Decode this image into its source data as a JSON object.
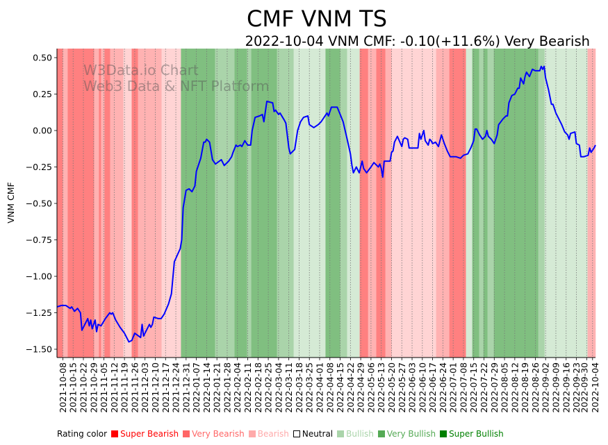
{
  "chart_data": {
    "type": "line",
    "title": "CMF VNM TS",
    "subtitle": "2022-10-04 VNM CMF: -0.10(+11.6%) Very Bearish",
    "ylabel": "VNM CMF",
    "xlabel": "",
    "ylim": [
      -1.557,
      0.562
    ],
    "xlim_days": [
      -4,
      363
    ],
    "x_origin": "2021-10-08",
    "yticks": [
      0.5,
      0.25,
      0,
      -0.25,
      -0.5,
      -0.75,
      -1.0,
      -1.25,
      -1.5
    ],
    "ytick_labels": [
      "0.50",
      "0.25",
      "0.00",
      "−0.25",
      "−0.50",
      "−0.75",
      "−1.00",
      "−1.25",
      "−1.50"
    ],
    "xtick_labels": [
      "2021-10-08",
      "2021-10-15",
      "2021-10-22",
      "2021-10-29",
      "2021-11-05",
      "2021-11-12",
      "2021-11-19",
      "2021-11-26",
      "2021-12-03",
      "2021-12-10",
      "2021-12-17",
      "2021-12-24",
      "2021-12-31",
      "2022-01-07",
      "2022-01-14",
      "2022-01-21",
      "2022-01-28",
      "2022-02-04",
      "2022-02-11",
      "2022-02-18",
      "2022-02-25",
      "2022-03-04",
      "2022-03-11",
      "2022-03-18",
      "2022-03-25",
      "2022-04-01",
      "2022-04-08",
      "2022-04-15",
      "2022-04-22",
      "2022-04-29",
      "2022-05-06",
      "2022-05-13",
      "2022-05-20",
      "2022-05-27",
      "2022-06-03",
      "2022-06-10",
      "2022-06-17",
      "2022-06-24",
      "2022-07-01",
      "2022-07-08",
      "2022-07-15",
      "2022-07-22",
      "2022-07-29",
      "2022-08-05",
      "2022-08-12",
      "2022-08-19",
      "2022-08-26",
      "2022-09-02",
      "2022-09-09",
      "2022-09-16",
      "2022-09-23",
      "2022-09-30",
      "2022-10-04"
    ],
    "xtick_days": [
      0,
      7,
      14,
      21,
      28,
      35,
      42,
      49,
      56,
      63,
      70,
      77,
      84,
      91,
      98,
      105,
      112,
      119,
      126,
      133,
      140,
      147,
      154,
      161,
      168,
      175,
      182,
      189,
      196,
      203,
      210,
      217,
      224,
      231,
      238,
      245,
      252,
      259,
      266,
      273,
      280,
      287,
      294,
      301,
      308,
      315,
      322,
      329,
      336,
      343,
      350,
      357,
      361
    ],
    "series": [
      {
        "name": "VNM CMF",
        "color": "#0000ff",
        "points": [
          [
            -4,
            -1.21
          ],
          [
            -1,
            -1.2
          ],
          [
            2,
            -1.2
          ],
          [
            5,
            -1.22
          ],
          [
            6,
            -1.21
          ],
          [
            8,
            -1.24
          ],
          [
            10,
            -1.22
          ],
          [
            12,
            -1.25
          ],
          [
            13,
            -1.37
          ],
          [
            17,
            -1.29
          ],
          [
            18,
            -1.34
          ],
          [
            19,
            -1.3
          ],
          [
            20,
            -1.36
          ],
          [
            22,
            -1.3
          ],
          [
            23,
            -1.38
          ],
          [
            24,
            -1.33
          ],
          [
            26,
            -1.34
          ],
          [
            29,
            -1.29
          ],
          [
            32,
            -1.25
          ],
          [
            33,
            -1.26
          ],
          [
            34,
            -1.25
          ],
          [
            36,
            -1.3
          ],
          [
            39,
            -1.35
          ],
          [
            42,
            -1.39
          ],
          [
            45,
            -1.45
          ],
          [
            47,
            -1.44
          ],
          [
            49,
            -1.39
          ],
          [
            53,
            -1.42
          ],
          [
            54,
            -1.33
          ],
          [
            55,
            -1.41
          ],
          [
            59,
            -1.33
          ],
          [
            60,
            -1.35
          ],
          [
            61,
            -1.33
          ],
          [
            62,
            -1.28
          ],
          [
            65,
            -1.29
          ],
          [
            67,
            -1.29
          ],
          [
            69,
            -1.26
          ],
          [
            72,
            -1.19
          ],
          [
            74,
            -1.12
          ],
          [
            76,
            -0.9
          ],
          [
            80,
            -0.81
          ],
          [
            81,
            -0.75
          ],
          [
            82,
            -0.53
          ],
          [
            84,
            -0.41
          ],
          [
            86,
            -0.4
          ],
          [
            88,
            -0.42
          ],
          [
            90,
            -0.38
          ],
          [
            91,
            -0.28
          ],
          [
            94,
            -0.19
          ],
          [
            96,
            -0.08
          ],
          [
            97,
            -0.08
          ],
          [
            98,
            -0.06
          ],
          [
            100,
            -0.08
          ],
          [
            102,
            -0.2
          ],
          [
            104,
            -0.23
          ],
          [
            108,
            -0.2
          ],
          [
            110,
            -0.24
          ],
          [
            113,
            -0.21
          ],
          [
            115,
            -0.18
          ],
          [
            116,
            -0.15
          ],
          [
            118,
            -0.1
          ],
          [
            119,
            -0.11
          ],
          [
            121,
            -0.1
          ],
          [
            122,
            -0.11
          ],
          [
            123,
            -0.09
          ],
          [
            124,
            -0.07
          ],
          [
            126,
            -0.1
          ],
          [
            128,
            -0.1
          ],
          [
            129,
            0.0
          ],
          [
            131,
            0.09
          ],
          [
            134,
            0.1
          ],
          [
            136,
            0.11
          ],
          [
            137,
            0.06
          ],
          [
            139,
            0.2
          ],
          [
            143,
            0.19
          ],
          [
            144,
            0.13
          ],
          [
            145,
            0.14
          ],
          [
            147,
            0.11
          ],
          [
            148,
            0.12
          ],
          [
            151,
            0.07
          ],
          [
            152,
            0.05
          ],
          [
            154,
            -0.12
          ],
          [
            155,
            -0.16
          ],
          [
            158,
            -0.13
          ],
          [
            160,
            0.0
          ],
          [
            162,
            0.06
          ],
          [
            164,
            0.09
          ],
          [
            167,
            0.1
          ],
          [
            168,
            0.04
          ],
          [
            171,
            0.02
          ],
          [
            174,
            0.04
          ],
          [
            176,
            0.06
          ],
          [
            180,
            0.12
          ],
          [
            181,
            0.1
          ],
          [
            183,
            0.16
          ],
          [
            187,
            0.16
          ],
          [
            189,
            0.11
          ],
          [
            191,
            0.06
          ],
          [
            194,
            -0.07
          ],
          [
            196,
            -0.16
          ],
          [
            197,
            -0.24
          ],
          [
            198,
            -0.29
          ],
          [
            200,
            -0.25
          ],
          [
            202,
            -0.29
          ],
          [
            204,
            -0.21
          ],
          [
            205,
            -0.26
          ],
          [
            207,
            -0.29
          ],
          [
            210,
            -0.25
          ],
          [
            212,
            -0.22
          ],
          [
            215,
            -0.25
          ],
          [
            216,
            -0.23
          ],
          [
            217,
            -0.26
          ],
          [
            218,
            -0.32
          ],
          [
            219,
            -0.21
          ],
          [
            223,
            -0.21
          ],
          [
            224,
            -0.15
          ],
          [
            225,
            -0.14
          ],
          [
            226,
            -0.08
          ],
          [
            227,
            -0.06
          ],
          [
            228,
            -0.04
          ],
          [
            231,
            -0.11
          ],
          [
            232,
            -0.06
          ],
          [
            233,
            -0.05
          ],
          [
            235,
            -0.06
          ],
          [
            236,
            -0.12
          ],
          [
            240,
            -0.12
          ],
          [
            242,
            -0.12
          ],
          [
            243,
            -0.02
          ],
          [
            244,
            -0.06
          ],
          [
            245,
            -0.03
          ],
          [
            246,
            0.0
          ],
          [
            247,
            -0.07
          ],
          [
            249,
            -0.1
          ],
          [
            250,
            -0.06
          ],
          [
            251,
            -0.07
          ],
          [
            252,
            -0.09
          ],
          [
            254,
            -0.08
          ],
          [
            256,
            -0.11
          ],
          [
            258,
            -0.03
          ],
          [
            260,
            -0.09
          ],
          [
            262,
            -0.14
          ],
          [
            264,
            -0.18
          ],
          [
            268,
            -0.18
          ],
          [
            271,
            -0.19
          ],
          [
            273,
            -0.17
          ],
          [
            276,
            -0.16
          ],
          [
            278,
            -0.12
          ],
          [
            280,
            -0.07
          ],
          [
            281,
            0.01
          ],
          [
            282,
            0.01
          ],
          [
            284,
            -0.03
          ],
          [
            286,
            -0.06
          ],
          [
            288,
            -0.04
          ],
          [
            289,
            0.0
          ],
          [
            290,
            -0.04
          ],
          [
            292,
            -0.06
          ],
          [
            294,
            -0.09
          ],
          [
            296,
            -0.03
          ],
          [
            297,
            0.04
          ],
          [
            300,
            0.08
          ],
          [
            302,
            0.1
          ],
          [
            303,
            0.1
          ],
          [
            304,
            0.19
          ],
          [
            306,
            0.24
          ],
          [
            308,
            0.25
          ],
          [
            310,
            0.29
          ],
          [
            311,
            0.29
          ],
          [
            312,
            0.36
          ],
          [
            314,
            0.32
          ],
          [
            315,
            0.37
          ],
          [
            316,
            0.4
          ],
          [
            318,
            0.37
          ],
          [
            320,
            0.42
          ],
          [
            322,
            0.41
          ],
          [
            325,
            0.41
          ],
          [
            326,
            0.44
          ],
          [
            327,
            0.42
          ],
          [
            328,
            0.44
          ],
          [
            329,
            0.36
          ],
          [
            331,
            0.28
          ],
          [
            333,
            0.18
          ],
          [
            334,
            0.18
          ],
          [
            336,
            0.12
          ],
          [
            338,
            0.08
          ],
          [
            340,
            0.04
          ],
          [
            342,
            -0.01
          ],
          [
            344,
            -0.03
          ],
          [
            345,
            -0.06
          ],
          [
            346,
            -0.02
          ],
          [
            349,
            -0.01
          ],
          [
            350,
            -0.09
          ],
          [
            352,
            -0.1
          ],
          [
            353,
            -0.18
          ],
          [
            355,
            -0.18
          ],
          [
            358,
            -0.17
          ],
          [
            359,
            -0.12
          ],
          [
            360,
            -0.15
          ],
          [
            362,
            -0.12
          ],
          [
            363,
            -0.1
          ]
        ]
      }
    ],
    "rating_bands": [
      [
        -4,
        0,
        "super_bearish"
      ],
      [
        0,
        3.3,
        "very_bearish"
      ],
      [
        3.3,
        21.3,
        "super_bearish"
      ],
      [
        21.3,
        24.6,
        "very_bearish"
      ],
      [
        24.6,
        26,
        "super_bearish"
      ],
      [
        26,
        28.4,
        "very_bearish"
      ],
      [
        28.4,
        32.2,
        "super_bearish"
      ],
      [
        32.2,
        41.2,
        "very_bearish"
      ],
      [
        41.2,
        46.9,
        "bearish"
      ],
      [
        46.9,
        51.2,
        "super_bearish"
      ],
      [
        51.2,
        67.3,
        "very_bearish"
      ],
      [
        67.3,
        80.5,
        "bearish"
      ],
      [
        80.5,
        103.7,
        "super_bullish"
      ],
      [
        103.7,
        117,
        "very_bullish"
      ],
      [
        117,
        125.5,
        "super_bullish"
      ],
      [
        125.5,
        128.4,
        "very_bullish"
      ],
      [
        128.4,
        145.9,
        "super_bullish"
      ],
      [
        145.9,
        157.3,
        "very_bullish"
      ],
      [
        157.3,
        179,
        "bullish"
      ],
      [
        179,
        189,
        "super_bullish"
      ],
      [
        189,
        193.7,
        "very_bullish"
      ],
      [
        193.7,
        202.3,
        "bullish"
      ],
      [
        202.3,
        208,
        "super_bearish"
      ],
      [
        208,
        213.6,
        "very_bearish"
      ],
      [
        213.6,
        219.8,
        "super_bearish"
      ],
      [
        219.8,
        224.1,
        "very_bearish"
      ],
      [
        224.1,
        254.4,
        "bearish"
      ],
      [
        254.4,
        263.4,
        "very_bearish"
      ],
      [
        263.4,
        274.7,
        "super_bearish"
      ],
      [
        274.7,
        279,
        "bullish"
      ],
      [
        279,
        283.7,
        "super_bullish"
      ],
      [
        283.7,
        286.6,
        "very_bullish"
      ],
      [
        286.6,
        289.4,
        "super_bullish"
      ],
      [
        289.4,
        293.7,
        "very_bullish"
      ],
      [
        293.7,
        324,
        "super_bullish"
      ],
      [
        324,
        328.3,
        "very_bullish"
      ],
      [
        328.3,
        357.6,
        "bullish"
      ],
      [
        357.6,
        363,
        "very_bearish"
      ]
    ],
    "band_colors": {
      "super_bearish": "#ff8080",
      "very_bearish": "#ffb2b2",
      "bearish": "#ffd4d4",
      "neutral": "#ffffff",
      "bullish": "#d5ead5",
      "very_bullish": "#aad4aa",
      "super_bullish": "#80bf80"
    },
    "legend": {
      "title": "Rating color",
      "items": [
        {
          "label": "Super Bearish",
          "color": "#ff0000"
        },
        {
          "label": "Very Bearish",
          "color": "#ff6666"
        },
        {
          "label": "Bearish",
          "color": "#ffaaaa"
        },
        {
          "label": "Neutral",
          "color": "#000000"
        },
        {
          "label": "Bullish",
          "color": "#aad4aa"
        },
        {
          "label": "Very Bullish",
          "color": "#55aa55"
        },
        {
          "label": "Super Bullish",
          "color": "#008000"
        }
      ]
    },
    "watermark": [
      "W3Data.io Chart",
      "Web3 Data & NFT Platform"
    ]
  }
}
